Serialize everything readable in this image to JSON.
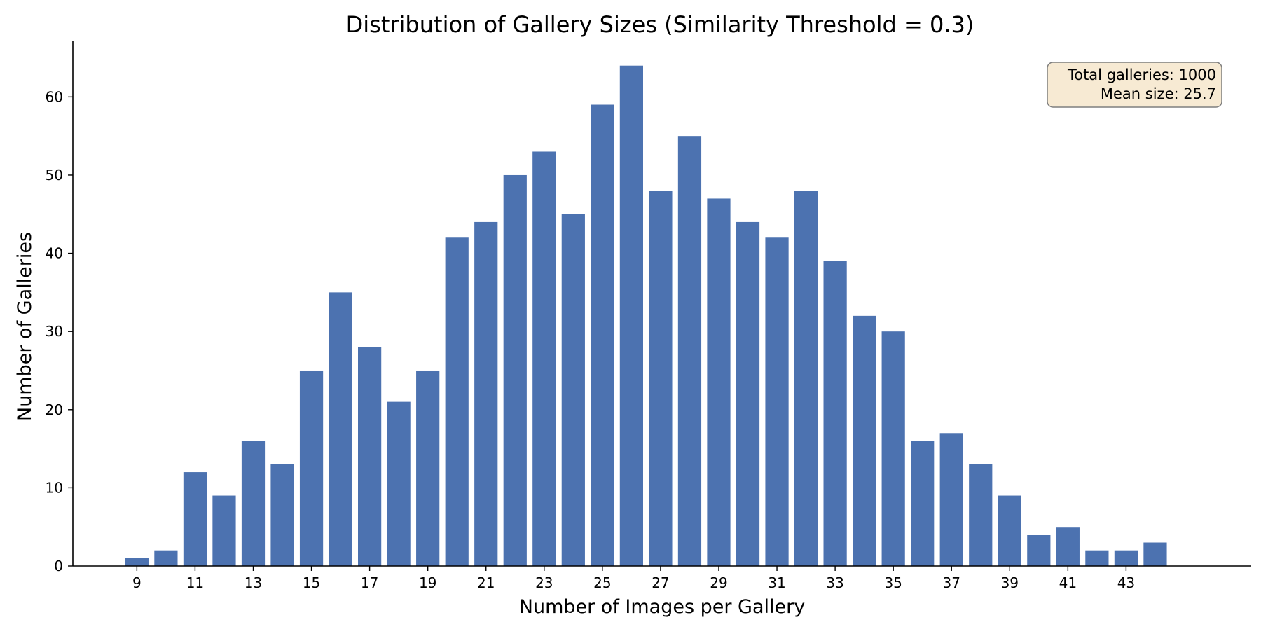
{
  "chart_data": {
    "type": "bar",
    "title": "Distribution of Gallery Sizes (Similarity Threshold = 0.3)",
    "xlabel": "Number of Images per Gallery",
    "ylabel": "Number of Galleries",
    "x": [
      9,
      10,
      11,
      12,
      13,
      14,
      15,
      16,
      17,
      18,
      19,
      20,
      21,
      22,
      23,
      24,
      25,
      26,
      27,
      28,
      29,
      30,
      31,
      32,
      33,
      34,
      35,
      36,
      37,
      38,
      39,
      40,
      41,
      42,
      43,
      44
    ],
    "values": [
      1,
      2,
      12,
      9,
      16,
      13,
      25,
      35,
      28,
      21,
      25,
      42,
      44,
      50,
      53,
      45,
      59,
      64,
      48,
      55,
      47,
      44,
      42,
      48,
      39,
      32,
      30,
      16,
      17,
      13,
      9,
      4,
      5,
      2,
      2,
      3
    ],
    "xticks": [
      9,
      11,
      13,
      15,
      17,
      19,
      21,
      23,
      25,
      27,
      29,
      31,
      33,
      35,
      37,
      39,
      41,
      43
    ],
    "yticks": [
      0,
      10,
      20,
      30,
      40,
      50,
      60
    ],
    "xlim": [
      6.8,
      47.3
    ],
    "ylim": [
      0,
      67.2
    ],
    "grid": false,
    "bar_color": "#4c72b0",
    "annotation": {
      "lines": [
        "Total galleries: 1000",
        "Mean size: 25.7"
      ],
      "position": "top-right",
      "background": "#f7ead3",
      "border": "#7f7f7f"
    }
  }
}
